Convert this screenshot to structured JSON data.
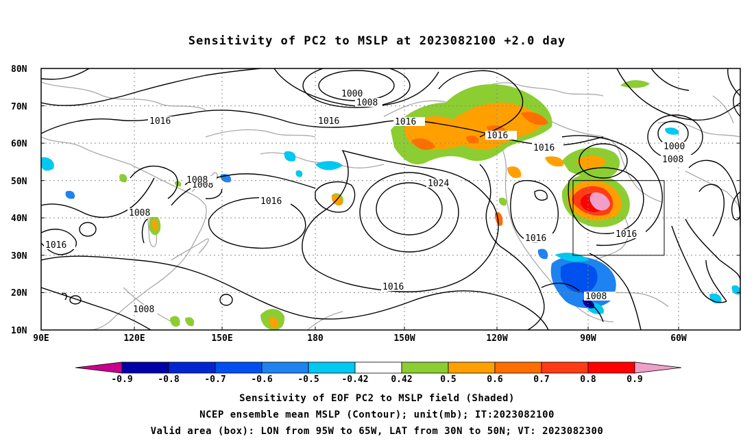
{
  "title": "Sensitivity of PC2 to MSLP at 2023082100 +2.0 day",
  "captions": [
    "Sensitivity of EOF PC2 to MSLP field (Shaded)",
    "NCEP ensemble mean MSLP (Contour); unit(mb); IT:2023082100",
    "Valid area (box): LON from 95W to 65W, LAT from 30N to 50N; VT: 2023082300"
  ],
  "lat_labels": [
    "80N",
    "70N",
    "60N",
    "50N",
    "40N",
    "30N",
    "20N",
    "10N"
  ],
  "lon_labels": [
    "90E",
    "120E",
    "150E",
    "180",
    "150W",
    "120W",
    "90W",
    "60W"
  ],
  "contour_labels": [
    "1000",
    "1008",
    "1016",
    "1016",
    "1016",
    "1016",
    "1000",
    "1008",
    "1016",
    "1024",
    "1016",
    "1008",
    "1016",
    "1016",
    "1016",
    "1008",
    "1016",
    "1008",
    "1008",
    "1008"
  ],
  "colorbar": {
    "labels": [
      "-0.9",
      "-0.8",
      "-0.7",
      "-0.6",
      "-0.5",
      "-0.42",
      "0.42",
      "0.5",
      "0.6",
      "0.7",
      "0.8",
      "0.9"
    ],
    "colors": [
      "#c8008c",
      "#0000a8",
      "#0026d0",
      "#0050f0",
      "#1e82f0",
      "#00c8f0",
      "#ffffff",
      "#8ccd32",
      "#ffa000",
      "#ff6e00",
      "#ff3c14",
      "#ff0000",
      "#f0a0c8"
    ]
  },
  "box": {
    "lon_west": "95W",
    "lon_east": "65W",
    "lat_south": "30N",
    "lat_north": "50N"
  }
}
